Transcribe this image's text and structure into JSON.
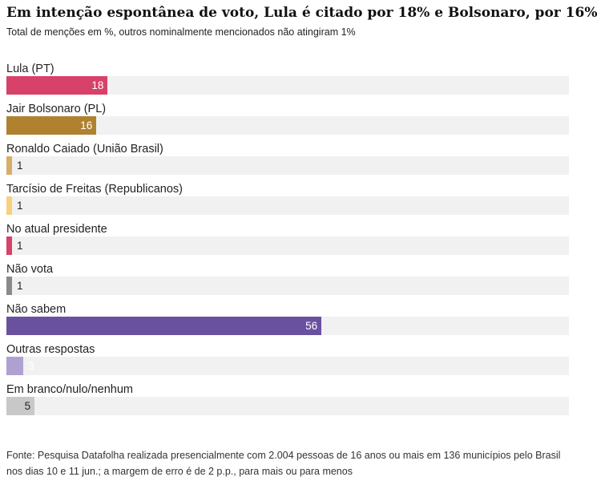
{
  "header": {
    "title": "Em intenção espontânea de voto, Lula é citado por 18% e Bolsonaro, por 16%",
    "subtitle": "Total de menções em %, outros nominalmente mencionados não atingiram 1%"
  },
  "chart_data": {
    "type": "bar",
    "orientation": "horizontal",
    "xlim": [
      0,
      100
    ],
    "grid": false,
    "categories": [
      "Lula (PT)",
      "Jair Bolsonaro (PL)",
      "Ronaldo Caiado (União Brasil)",
      "Tarcísio de Freitas (Republicanos)",
      "No atual presidente",
      "Não vota",
      "Não sabem",
      "Outras respostas",
      "Em branco/nulo/nenhum"
    ],
    "values": [
      18,
      16,
      1,
      1,
      1,
      1,
      56,
      3,
      5
    ],
    "value_labels": [
      "18",
      "16",
      "1",
      "1",
      "1",
      "1",
      "56",
      "3",
      "5"
    ],
    "colors": [
      "#d8416a",
      "#b0822f",
      "#d7ae68",
      "#f7d17c",
      "#d8416a",
      "#8a8a8a",
      "#6a51a0",
      "#aea1d2",
      "#c8c8c8"
    ],
    "label_colors": [
      "#ffffff",
      "#ffffff",
      "#222222",
      "#222222",
      "#222222",
      "#222222",
      "#ffffff",
      "#ffffff",
      "#222222"
    ]
  },
  "footer": {
    "source": "Fonte: Pesquisa Datafolha realizada presencialmente com 2.004 pessoas de 16 anos ou mais em 136 municípios pelo Brasil nos dias 10 e 11 jun.; a margem de erro é de 2 p.p., para mais ou para menos"
  }
}
